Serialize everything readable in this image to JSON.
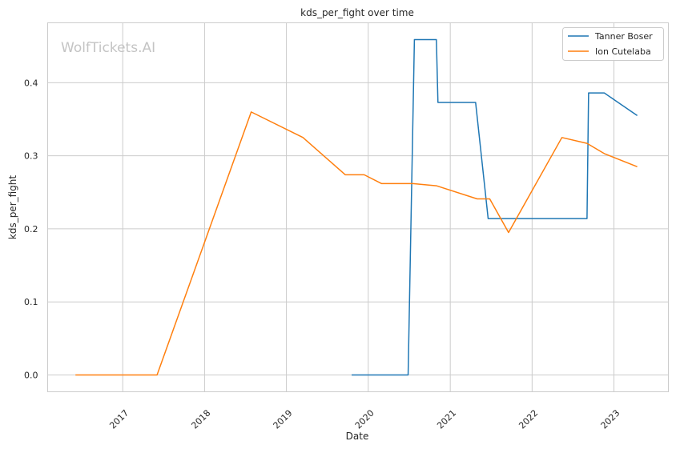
{
  "watermark": "WolfTickets.AI",
  "chart_data": {
    "type": "line",
    "title": "kds_per_fight over time",
    "xlabel": "Date",
    "ylabel": "kds_per_fight",
    "x_type": "date",
    "xlim": [
      "2016-02-01",
      "2023-09-01"
    ],
    "ylim": [
      -0.023,
      0.482
    ],
    "x_ticks": [
      "2017",
      "2018",
      "2019",
      "2020",
      "2021",
      "2022",
      "2023"
    ],
    "y_ticks": [
      0.0,
      0.1,
      0.2,
      0.3,
      0.4
    ],
    "y_tick_labels": [
      "0.0",
      "0.1",
      "0.2",
      "0.3",
      "0.4"
    ],
    "grid": true,
    "legend": "top-right",
    "series": [
      {
        "name": "Tanner Boser",
        "color": "#1f77b4",
        "points": [
          [
            "2019-10-19",
            0.0
          ],
          [
            "2020-06-27",
            0.0
          ],
          [
            "2020-07-25",
            0.459
          ],
          [
            "2020-10-31",
            0.459
          ],
          [
            "2020-11-07",
            0.373
          ],
          [
            "2021-04-24",
            0.373
          ],
          [
            "2021-06-19",
            0.214
          ],
          [
            "2022-09-03",
            0.214
          ],
          [
            "2022-09-10",
            0.386
          ],
          [
            "2022-11-19",
            0.386
          ],
          [
            "2023-04-15",
            0.355
          ]
        ]
      },
      {
        "name": "Ion Cutelaba",
        "color": "#ff7f0e",
        "points": [
          [
            "2016-06-04",
            0.0
          ],
          [
            "2017-06-03",
            0.0
          ],
          [
            "2018-07-28",
            0.36
          ],
          [
            "2019-03-16",
            0.325
          ],
          [
            "2019-09-21",
            0.274
          ],
          [
            "2019-12-14",
            0.274
          ],
          [
            "2020-02-29",
            0.262
          ],
          [
            "2020-07-18",
            0.262
          ],
          [
            "2020-10-31",
            0.259
          ],
          [
            "2021-05-01",
            0.241
          ],
          [
            "2021-06-26",
            0.241
          ],
          [
            "2021-09-18",
            0.195
          ],
          [
            "2022-05-14",
            0.325
          ],
          [
            "2022-09-03",
            0.317
          ],
          [
            "2022-11-19",
            0.303
          ],
          [
            "2023-04-15",
            0.285
          ]
        ]
      }
    ]
  }
}
